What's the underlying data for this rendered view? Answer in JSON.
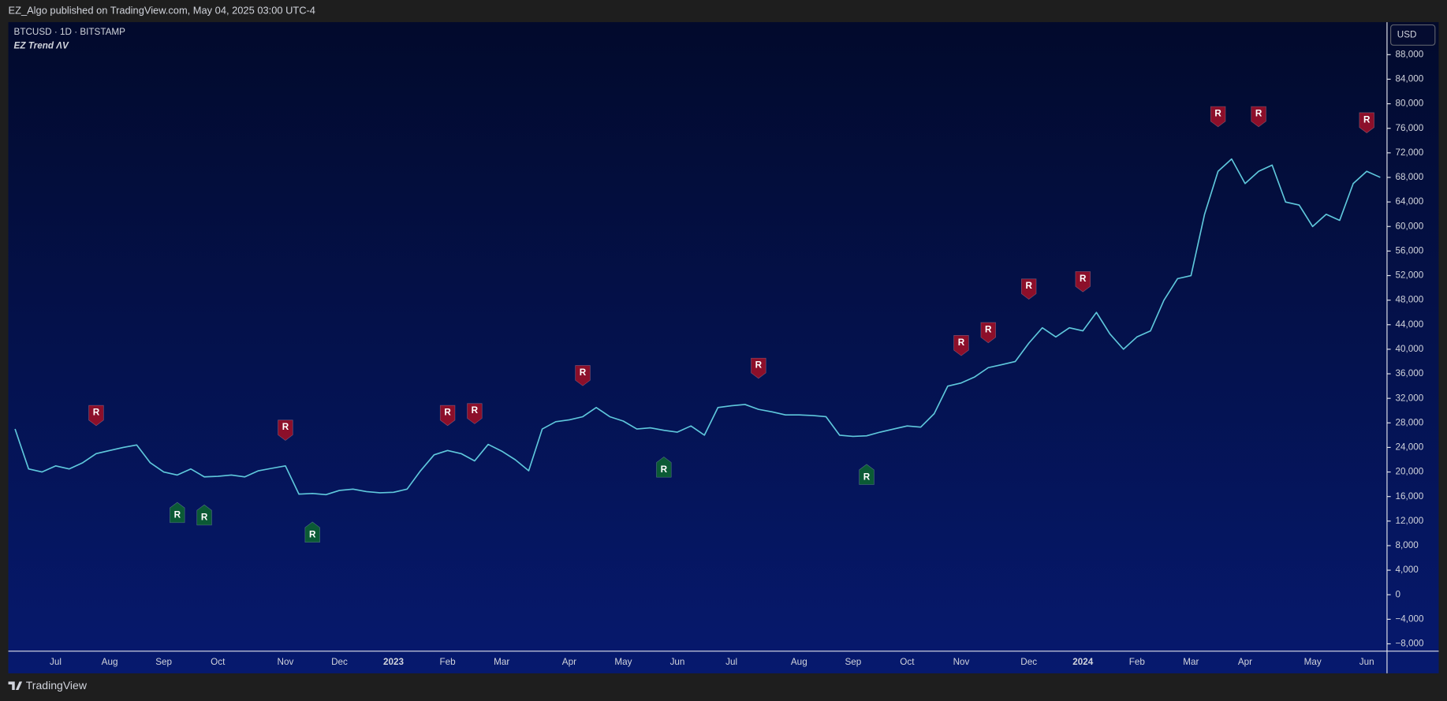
{
  "header": {
    "published": "EZ_Algo published on TradingView.com, May 04, 2025 03:00 UTC-4"
  },
  "footer": {
    "brand": "TradingView"
  },
  "chart_data": {
    "type": "line",
    "title": "BTCUSD · 1D · BITSTAMP",
    "subtitle": "EZ Trend ΛV",
    "currency": "USD",
    "grid": false,
    "categories": [
      null,
      null,
      null,
      "Jul",
      null,
      null,
      null,
      "Aug",
      null,
      null,
      null,
      "Sep",
      null,
      null,
      null,
      "Oct",
      null,
      null,
      null,
      null,
      "Nov",
      null,
      null,
      null,
      "Dec",
      null,
      null,
      null,
      "2023",
      null,
      null,
      null,
      "Feb",
      null,
      null,
      null,
      "Mar",
      null,
      null,
      null,
      null,
      "Apr",
      null,
      null,
      null,
      "May",
      null,
      null,
      null,
      "Jun",
      null,
      null,
      null,
      "Jul",
      null,
      null,
      null,
      null,
      "Aug",
      null,
      null,
      null,
      "Sep",
      null,
      null,
      null,
      "Oct",
      null,
      null,
      null,
      "Nov",
      null,
      null,
      null,
      null,
      "Dec",
      null,
      null,
      null,
      "2024",
      null,
      null,
      null,
      "Feb",
      null,
      null,
      null,
      "Mar",
      null,
      null,
      null,
      "Apr",
      null,
      null,
      null,
      null,
      "May",
      null,
      null,
      null,
      "Jun",
      null
    ],
    "series": [
      {
        "color": "#5fc8dc",
        "values": [
          27000,
          20500,
          20000,
          21000,
          20500,
          21500,
          23000,
          23500,
          24000,
          24400,
          21500,
          20000,
          19500,
          20500,
          19200,
          19300,
          19500,
          19200,
          20200,
          20600,
          21000,
          16400,
          16500,
          16300,
          17000,
          17200,
          16800,
          16600,
          16700,
          17200,
          20200,
          22800,
          23500,
          23000,
          21800,
          24500,
          23400,
          22000,
          20200,
          27000,
          28200,
          28500,
          29000,
          30500,
          29000,
          28300,
          27000,
          27200,
          26800,
          26500,
          27500,
          26000,
          30500,
          30800,
          31000,
          30200,
          29800,
          29300,
          29300,
          29200,
          29000,
          26000,
          25800,
          25900,
          26500,
          27000,
          27500,
          27300,
          29500,
          34000,
          34500,
          35500,
          37000,
          37500,
          38000,
          41000,
          43500,
          42000,
          43500,
          43000,
          46000,
          42500,
          40000,
          42000,
          43000,
          48000,
          51500,
          52000,
          62000,
          69000,
          71000,
          67000,
          69000,
          70000,
          64000,
          63500,
          60000,
          62000,
          61000,
          67000,
          69000,
          68000
        ]
      }
    ],
    "ylim": [
      -9200,
      93300
    ],
    "yticks": [
      {
        "value": -8000,
        "label": "−8,000"
      },
      {
        "value": -4000,
        "label": "−4,000"
      },
      0,
      {
        "value": 4000,
        "label": "4,000"
      },
      {
        "value": 8000,
        "label": "8,000"
      },
      {
        "value": 12000,
        "label": "12,000"
      },
      {
        "value": 16000,
        "label": "16,000"
      },
      {
        "value": 20000,
        "label": "20,000"
      },
      {
        "value": 24000,
        "label": "24,000"
      },
      {
        "value": 28000,
        "label": "28,000"
      },
      {
        "value": 32000,
        "label": "32,000"
      },
      {
        "value": 36000,
        "label": "36,000"
      },
      {
        "value": 40000,
        "label": "40,000"
      },
      {
        "value": 44000,
        "label": "44,000"
      },
      {
        "value": 48000,
        "label": "48,000"
      },
      {
        "value": 52000,
        "label": "52,000"
      },
      {
        "value": 56000,
        "label": "56,000"
      },
      {
        "value": 60000,
        "label": "60,000"
      },
      {
        "value": 64000,
        "label": "64,000"
      },
      {
        "value": 68000,
        "label": "68,000"
      },
      {
        "value": 72000,
        "label": "72,000"
      },
      {
        "value": 76000,
        "label": "76,000"
      },
      {
        "value": 80000,
        "label": "80,000"
      },
      {
        "value": 84000,
        "label": "84,000"
      },
      {
        "value": 88000,
        "label": "88,000"
      }
    ],
    "signals": [
      {
        "text": "R",
        "x": 6,
        "y": 29200,
        "color": "#8c0f2a",
        "side": "above"
      },
      {
        "text": "R",
        "x": 20,
        "y": 26800,
        "color": "#8c0f2a",
        "side": "above"
      },
      {
        "text": "R",
        "x": 32,
        "y": 29200,
        "color": "#8c0f2a",
        "side": "above"
      },
      {
        "text": "R",
        "x": 34,
        "y": 29500,
        "color": "#8c0f2a",
        "side": "above"
      },
      {
        "text": "R",
        "x": 42,
        "y": 35700,
        "color": "#8c0f2a",
        "side": "above"
      },
      {
        "text": "R",
        "x": 55,
        "y": 36900,
        "color": "#8c0f2a",
        "side": "above"
      },
      {
        "text": "R",
        "x": 70,
        "y": 40600,
        "color": "#8c0f2a",
        "side": "above"
      },
      {
        "text": "R",
        "x": 72,
        "y": 42700,
        "color": "#8c0f2a",
        "side": "above"
      },
      {
        "text": "R",
        "x": 75,
        "y": 49800,
        "color": "#8c0f2a",
        "side": "above"
      },
      {
        "text": "R",
        "x": 79,
        "y": 51000,
        "color": "#8c0f2a",
        "side": "above"
      },
      {
        "text": "R",
        "x": 89,
        "y": 77900,
        "color": "#8c0f2a",
        "side": "above"
      },
      {
        "text": "R",
        "x": 92,
        "y": 77900,
        "color": "#8c0f2a",
        "side": "above"
      },
      {
        "text": "R",
        "x": 100,
        "y": 76900,
        "color": "#8c0f2a",
        "side": "above"
      },
      {
        "text": "R",
        "x": 12,
        "y": 13400,
        "color": "#0b5a35",
        "side": "below"
      },
      {
        "text": "R",
        "x": 14,
        "y": 13000,
        "color": "#0b5a35",
        "side": "below"
      },
      {
        "text": "R",
        "x": 22,
        "y": 10200,
        "color": "#0b5a35",
        "side": "below"
      },
      {
        "text": "R",
        "x": 48,
        "y": 20800,
        "color": "#0b5a35",
        "side": "below"
      },
      {
        "text": "R",
        "x": 63,
        "y": 19600,
        "color": "#0b5a35",
        "side": "below"
      }
    ]
  }
}
